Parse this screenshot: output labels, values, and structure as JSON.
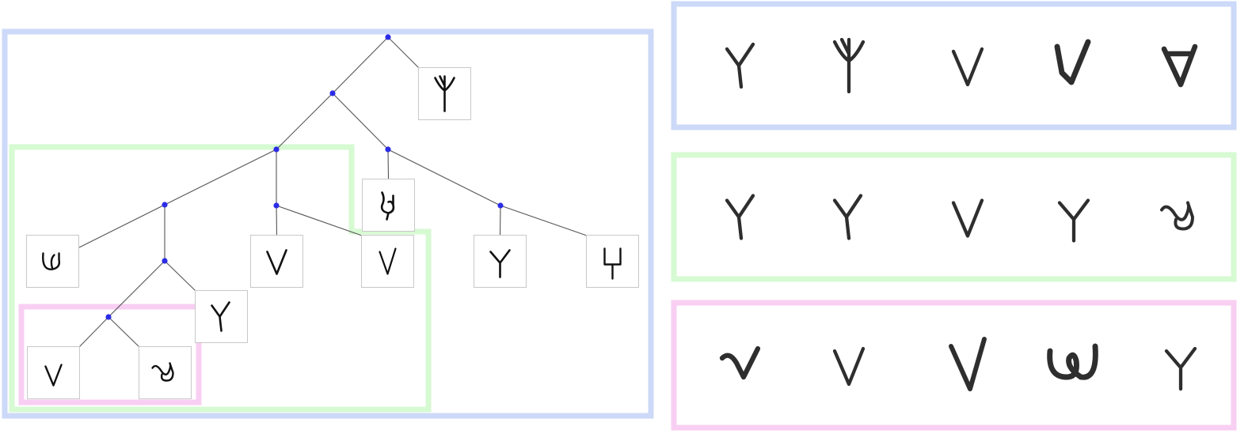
{
  "colors": {
    "blue_frame": "#ccd9f8",
    "green_frame": "#d6fad2",
    "pink_frame": "#f8cff3",
    "node": "#2c2ce6",
    "edge": "#555555",
    "leaf_border": "#c8c8c8",
    "ink": "#111111"
  },
  "tree": {
    "nodes": [
      {
        "id": "n-root",
        "parent": null
      },
      {
        "id": "n-a",
        "parent": "n-root"
      },
      {
        "id": "n-b",
        "parent": "n-a"
      },
      {
        "id": "n-c",
        "parent": "n-a"
      },
      {
        "id": "n-d",
        "parent": "n-b"
      },
      {
        "id": "n-e",
        "parent": "n-b"
      },
      {
        "id": "n-f",
        "parent": "n-c"
      },
      {
        "id": "n-g",
        "parent": "n-d"
      },
      {
        "id": "n-h",
        "parent": "n-g"
      }
    ],
    "leaves": [
      {
        "id": "leaf-1",
        "parent": "n-root",
        "glyph": "trident"
      },
      {
        "id": "leaf-2",
        "parent": "n-c",
        "glyph": "loop-hook"
      },
      {
        "id": "leaf-3",
        "parent": "n-d",
        "glyph": "u-loop"
      },
      {
        "id": "leaf-4",
        "parent": "n-e",
        "glyph": "v"
      },
      {
        "id": "leaf-5",
        "parent": "n-e",
        "glyph": "v-thin"
      },
      {
        "id": "leaf-6",
        "parent": "n-f",
        "glyph": "y"
      },
      {
        "id": "leaf-7",
        "parent": "n-f",
        "glyph": "fork-box"
      },
      {
        "id": "leaf-8",
        "parent": "n-g",
        "glyph": "y-lean"
      },
      {
        "id": "leaf-9",
        "parent": "n-h",
        "glyph": "v-small"
      },
      {
        "id": "leaf-10",
        "parent": "n-h",
        "glyph": "curl"
      }
    ]
  },
  "sample_panels": [
    {
      "id": "blue",
      "glyphs": [
        "y-lean",
        "trident",
        "v",
        "v-bold",
        "v-filled"
      ]
    },
    {
      "id": "green",
      "glyphs": [
        "y-lean",
        "y-lean",
        "v",
        "y",
        "curl"
      ]
    },
    {
      "id": "pink",
      "glyphs": [
        "v-hook",
        "v",
        "v-long",
        "loop-u",
        "y"
      ]
    }
  ]
}
